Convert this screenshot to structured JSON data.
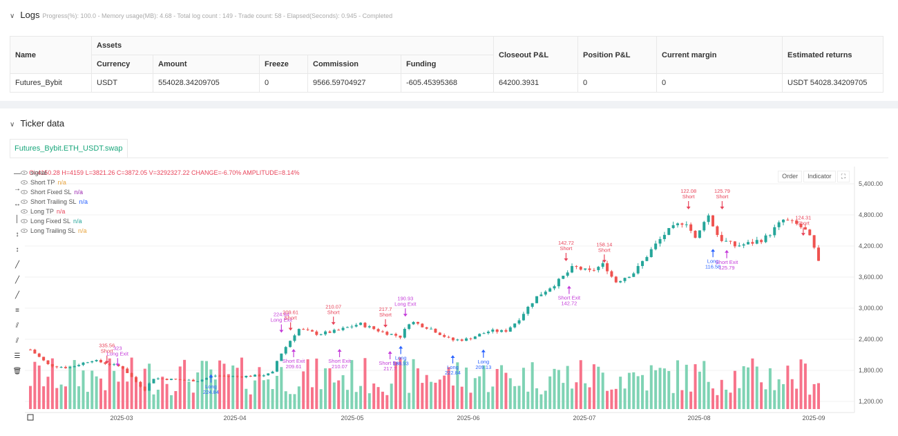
{
  "logs": {
    "title": "Logs",
    "summary": "Progress(%): 100.0  - Memory usage(MB): 4.68 - Total log count : 149 - Trade count:  58 - Elapsed(Seconds): 0.945 - Completed"
  },
  "assets_table": {
    "headers": {
      "name": "Name",
      "assets": "Assets",
      "closeout": "Closeout P&L",
      "position": "Position P&L",
      "margin": "Current margin",
      "returns": "Estimated returns",
      "currency": "Currency",
      "amount": "Amount",
      "freeze": "Freeze",
      "commission": "Commission",
      "funding": "Funding"
    },
    "row": {
      "name": "Futures_Bybit",
      "currency": "USDT",
      "amount": "554028.34209705",
      "freeze": "0",
      "commission": "9566.59704927",
      "funding": "-605.45395368",
      "closeout": "64200.3931",
      "position": "0",
      "margin": "0",
      "returns": "USDT 54028.34209705"
    }
  },
  "ticker": {
    "title": "Ticker data",
    "tab": "Futures_Bybit.ETH_USDT.swap",
    "ohlc": "O=4150.28 H=4159 L=3821.26 C=3872.05 V=3292327.22 CHANGE=-6.70% AMPLITUDE=8.14%",
    "buttons": [
      "Order",
      "Indicator"
    ],
    "legend": [
      {
        "label": "signal",
        "value": "",
        "color": "#555"
      },
      {
        "label": "Short TP",
        "value": "n/a",
        "color": "#e8a33d"
      },
      {
        "label": "Short Fixed SL",
        "value": "n/a",
        "color": "#9c27b0"
      },
      {
        "label": "Short Trailing SL",
        "value": "n/a",
        "color": "#2962ff"
      },
      {
        "label": "Long TP",
        "value": "n/a",
        "color": "#e8445a"
      },
      {
        "label": "Long Fixed SL",
        "value": "n/a",
        "color": "#26a69a"
      },
      {
        "label": "Long Trailing SL",
        "value": "n/a",
        "color": "#e8a33d"
      }
    ]
  },
  "chart_data": {
    "type": "candlestick",
    "y_ticks": [
      "5,400.00",
      "4,800.00",
      "4,200.00",
      "3,600.00",
      "3,000.00",
      "2,400.00",
      "1,800.00",
      "1,200.00"
    ],
    "y_tick_values": [
      5400,
      4800,
      4200,
      3600,
      3000,
      2400,
      1800,
      1200
    ],
    "x_ticks": [
      "2025-03",
      "2025-04",
      "2025-05",
      "2025-06",
      "2025-07",
      "2025-08",
      "2025-09"
    ],
    "price_path": [
      [
        0,
        2200
      ],
      [
        12,
        1900
      ],
      [
        25,
        1850
      ],
      [
        40,
        2000
      ],
      [
        60,
        1860
      ],
      [
        70,
        1550
      ],
      [
        75,
        1420
      ],
      [
        80,
        1650
      ],
      [
        95,
        1620
      ],
      [
        110,
        1600
      ],
      [
        120,
        1700
      ],
      [
        135,
        1680
      ],
      [
        150,
        1700
      ],
      [
        158,
        1740
      ],
      [
        162,
        2050
      ],
      [
        168,
        2300
      ],
      [
        175,
        2600
      ],
      [
        188,
        2500
      ],
      [
        200,
        2560
      ],
      [
        215,
        2700
      ],
      [
        230,
        2540
      ],
      [
        242,
        2450
      ],
      [
        248,
        2750
      ],
      [
        262,
        2600
      ],
      [
        275,
        2380
      ],
      [
        285,
        2400
      ],
      [
        300,
        2560
      ],
      [
        310,
        2550
      ],
      [
        318,
        2750
      ],
      [
        330,
        3200
      ],
      [
        345,
        3520
      ],
      [
        355,
        3800
      ],
      [
        365,
        3700
      ],
      [
        375,
        3850
      ],
      [
        382,
        3500
      ],
      [
        395,
        3700
      ],
      [
        405,
        4100
      ],
      [
        415,
        4450
      ],
      [
        428,
        4700
      ],
      [
        435,
        4300
      ],
      [
        442,
        4850
      ],
      [
        450,
        4350
      ],
      [
        460,
        4200
      ],
      [
        470,
        4250
      ],
      [
        480,
        4350
      ],
      [
        492,
        4700
      ],
      [
        502,
        4600
      ],
      [
        508,
        4450
      ],
      [
        512,
        4150
      ],
      [
        515,
        3870
      ]
    ],
    "annotations": [
      {
        "day": 50,
        "price": 1900,
        "text": [
          "335.56",
          "Short"
        ],
        "kind": "short"
      },
      {
        "day": 57,
        "price": 1850,
        "text": [
          "323",
          "Long Exit"
        ],
        "kind": "long-exit"
      },
      {
        "day": 118,
        "price": 1750,
        "text": [
          "Long",
          "224.84"
        ],
        "kind": "long"
      },
      {
        "day": 164,
        "price": 2500,
        "text": [
          "224.84",
          "Long Exit"
        ],
        "kind": "long-exit"
      },
      {
        "day": 170,
        "price": 2540,
        "text": [
          "209.61",
          "Short"
        ],
        "kind": "short"
      },
      {
        "day": 172,
        "price": 2240,
        "text": [
          "Short Exit",
          "209.61"
        ],
        "kind": "short-exit"
      },
      {
        "day": 198,
        "price": 2650,
        "text": [
          "210.07",
          "Short"
        ],
        "kind": "short"
      },
      {
        "day": 202,
        "price": 2240,
        "text": [
          "Short Exit",
          "210.07"
        ],
        "kind": "short-exit"
      },
      {
        "day": 232,
        "price": 2600,
        "text": [
          "217.7",
          "Short"
        ],
        "kind": "short"
      },
      {
        "day": 235,
        "price": 2200,
        "text": [
          "Short Exit",
          "217.7"
        ],
        "kind": "short-exit"
      },
      {
        "day": 242,
        "price": 2300,
        "text": [
          "Long",
          "186.93"
        ],
        "kind": "long"
      },
      {
        "day": 245,
        "price": 2810,
        "text": [
          "190.93",
          "Long Exit"
        ],
        "kind": "long-exit"
      },
      {
        "day": 276,
        "price": 2120,
        "text": [
          "Long",
          "222.84"
        ],
        "kind": "long"
      },
      {
        "day": 296,
        "price": 2230,
        "text": [
          "Long",
          "209.13"
        ],
        "kind": "long"
      },
      {
        "day": 350,
        "price": 3880,
        "text": [
          "142.72",
          "Short"
        ],
        "kind": "short"
      },
      {
        "day": 352,
        "price": 3460,
        "text": [
          "Short Exit",
          "142.72"
        ],
        "kind": "short-exit"
      },
      {
        "day": 375,
        "price": 3850,
        "text": [
          "158.14",
          "Short"
        ],
        "kind": "short"
      },
      {
        "day": 430,
        "price": 4880,
        "text": [
          "122.08",
          "Short"
        ],
        "kind": "short"
      },
      {
        "day": 446,
        "price": 4170,
        "text": [
          "Long",
          "116.58"
        ],
        "kind": "long"
      },
      {
        "day": 452,
        "price": 4880,
        "text": [
          "125.79",
          "Short"
        ],
        "kind": "short"
      },
      {
        "day": 455,
        "price": 4150,
        "text": [
          "Short Exit",
          "125.79"
        ],
        "kind": "short-exit"
      },
      {
        "day": 505,
        "price": 4370,
        "text": [
          "124.31",
          "Short"
        ],
        "kind": "short"
      }
    ],
    "colors": {
      "up": "#26a69a",
      "down": "#ef5350",
      "vol_up": "#7fd3b4",
      "vol_down": "#f7738a",
      "long": "#2962ff",
      "short": "#e8445a",
      "exit": "#c43cd9"
    }
  }
}
